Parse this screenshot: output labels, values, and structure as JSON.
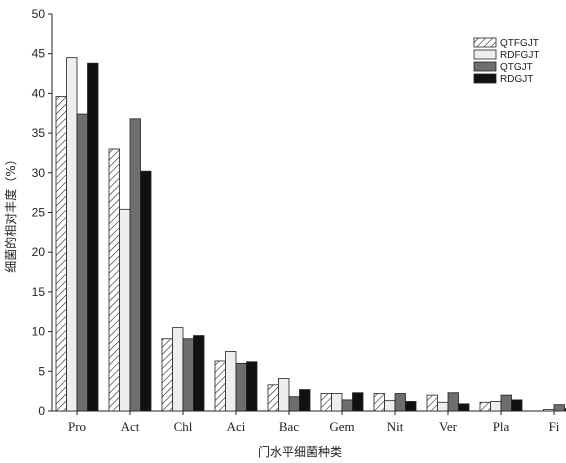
{
  "chart_data": {
    "type": "bar",
    "title": "",
    "xlabel": "门水平细菌种类",
    "ylabel": "细菌的相对丰度（%）",
    "categories": [
      "Pro",
      "Act",
      "Chl",
      "Aci",
      "Bac",
      "Gem",
      "Nit",
      "Ver",
      "Pla",
      "Fi"
    ],
    "ylim": [
      0,
      50
    ],
    "yticks": [
      0,
      5,
      10,
      15,
      20,
      25,
      30,
      35,
      40,
      45,
      50
    ],
    "grid": false,
    "legend_position": "top-right",
    "series": [
      {
        "name": "QTFGJT",
        "pattern": "hatch",
        "color": "#ffffff",
        "values": [
          39.6,
          33.0,
          9.1,
          6.3,
          3.3,
          2.2,
          2.2,
          2.0,
          1.1,
          0.0
        ]
      },
      {
        "name": "RDFGJT",
        "pattern": "solid",
        "color": "#eeeeee",
        "values": [
          44.5,
          25.4,
          10.5,
          7.5,
          4.1,
          2.2,
          1.3,
          1.1,
          1.2,
          0.2
        ]
      },
      {
        "name": "QTGJT",
        "pattern": "solid",
        "color": "#6e6e6e",
        "values": [
          37.4,
          36.8,
          9.1,
          6.0,
          1.8,
          1.4,
          2.2,
          2.3,
          2.0,
          0.8
        ]
      },
      {
        "name": "RDGJT",
        "pattern": "solid",
        "color": "#111111",
        "values": [
          43.8,
          30.2,
          9.5,
          6.2,
          2.7,
          2.3,
          1.2,
          0.9,
          1.4,
          0.3
        ]
      }
    ]
  }
}
